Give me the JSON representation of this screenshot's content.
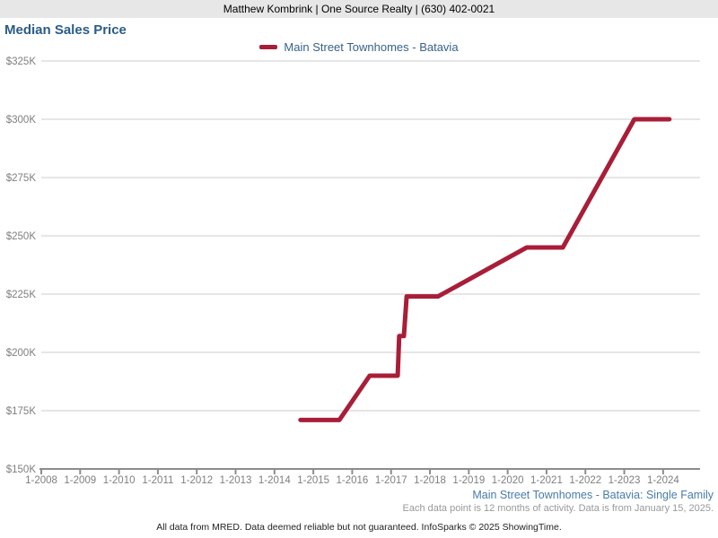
{
  "header": {
    "text": "Matthew Kombrink | One Source Realty | (630) 402-0021"
  },
  "title": "Median Sales Price",
  "legend": {
    "label": "Main Street Townhomes - Batavia",
    "swatch_color": "#a81e38"
  },
  "colors": {
    "line": "#a81e38",
    "title_text": "#2b5c87",
    "legend_text": "#38618c",
    "footer_series_text": "#4a7bab",
    "grid": "#cccccc",
    "axis": "#8c8c8c",
    "tick_label": "#7f7f7f",
    "header_bg": "#e7e7e7"
  },
  "chart_data": {
    "type": "line",
    "title": "Median Sales Price",
    "xlabel": "",
    "ylabel": "",
    "xlim": [
      2008,
      2024.95
    ],
    "ylim": [
      150000,
      325000
    ],
    "grid": "horizontal",
    "legend_position": "top-center",
    "y_ticks": [
      {
        "value": 150000,
        "label": "$150K"
      },
      {
        "value": 175000,
        "label": "$175K"
      },
      {
        "value": 200000,
        "label": "$200K"
      },
      {
        "value": 225000,
        "label": "$225K"
      },
      {
        "value": 250000,
        "label": "$250K"
      },
      {
        "value": 275000,
        "label": "$275K"
      },
      {
        "value": 300000,
        "label": "$300K"
      },
      {
        "value": 325000,
        "label": "$325K"
      }
    ],
    "x_ticks": [
      {
        "value": 2008,
        "label": "1-2008"
      },
      {
        "value": 2009,
        "label": "1-2009"
      },
      {
        "value": 2010,
        "label": "1-2010"
      },
      {
        "value": 2011,
        "label": "1-2011"
      },
      {
        "value": 2012,
        "label": "1-2012"
      },
      {
        "value": 2013,
        "label": "1-2013"
      },
      {
        "value": 2014,
        "label": "1-2014"
      },
      {
        "value": 2015,
        "label": "1-2015"
      },
      {
        "value": 2016,
        "label": "1-2016"
      },
      {
        "value": 2017,
        "label": "1-2017"
      },
      {
        "value": 2018,
        "label": "1-2018"
      },
      {
        "value": 2019,
        "label": "1-2019"
      },
      {
        "value": 2020,
        "label": "1-2020"
      },
      {
        "value": 2021,
        "label": "1-2021"
      },
      {
        "value": 2022,
        "label": "1-2022"
      },
      {
        "value": 2023,
        "label": "1-2023"
      },
      {
        "value": 2024,
        "label": "1-2024"
      }
    ],
    "series": [
      {
        "name": "Main Street Townhomes - Batavia",
        "color": "#a81e38",
        "points": [
          {
            "x": 2014.67,
            "y": 171000
          },
          {
            "x": 2015.67,
            "y": 171000
          },
          {
            "x": 2016.45,
            "y": 190000
          },
          {
            "x": 2017.17,
            "y": 190000
          },
          {
            "x": 2017.21,
            "y": 207000
          },
          {
            "x": 2017.33,
            "y": 207000
          },
          {
            "x": 2017.4,
            "y": 224000
          },
          {
            "x": 2018.21,
            "y": 224000
          },
          {
            "x": 2020.49,
            "y": 245000
          },
          {
            "x": 2021.42,
            "y": 245000
          },
          {
            "x": 2023.26,
            "y": 300000
          },
          {
            "x": 2024.16,
            "y": 300000
          }
        ]
      }
    ]
  },
  "footer": {
    "series_note": "Main Street Townhomes - Batavia: Single Family",
    "data_note": "Each data point is 12 months of activity. Data is from January 15, 2025.",
    "disclaimer": "All data from MRED. Data deemed reliable but not guaranteed. InfoSparks © 2025 ShowingTime."
  }
}
